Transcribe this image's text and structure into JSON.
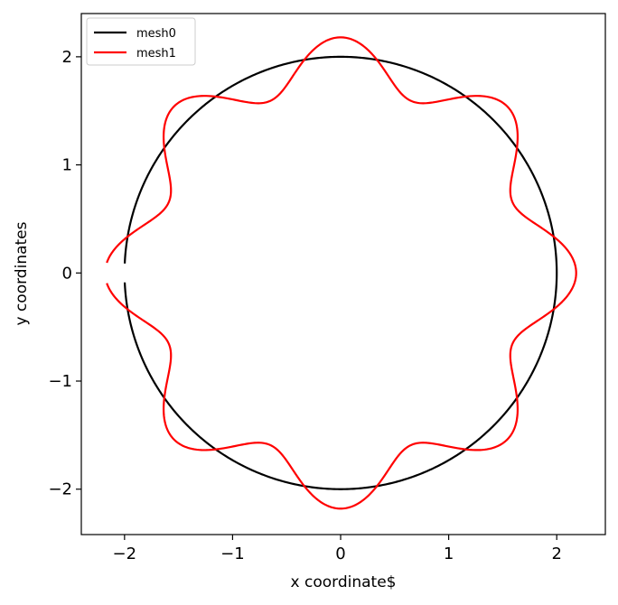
{
  "chart_data": {
    "type": "line",
    "xlabel": "x coordinate$",
    "ylabel": "y coordinates",
    "xlim": [
      -2.4,
      2.45
    ],
    "ylim": [
      -2.42,
      2.4
    ],
    "xticks": [
      -2,
      -1,
      0,
      1,
      2
    ],
    "yticks": [
      -2,
      -1,
      0,
      1,
      2
    ],
    "xtick_labels": [
      "−2",
      "−1",
      "0",
      "1",
      "2"
    ],
    "ytick_labels": [
      "−2",
      "−1",
      "0",
      "1",
      "2"
    ],
    "grid": false,
    "aspect": "equal",
    "legend": {
      "placement": "top-left"
    },
    "series": [
      {
        "name": "mesh0",
        "color": "#000000",
        "shape": "circle",
        "radius": 2.0,
        "gap_near_angle_deg": 180
      },
      {
        "name": "mesh1",
        "color": "#ff0000",
        "shape": "wavy-circle",
        "base_radius": 1.95,
        "amplitude": 0.23,
        "lobes": 8,
        "gap_near_angle_deg": 180
      }
    ]
  }
}
